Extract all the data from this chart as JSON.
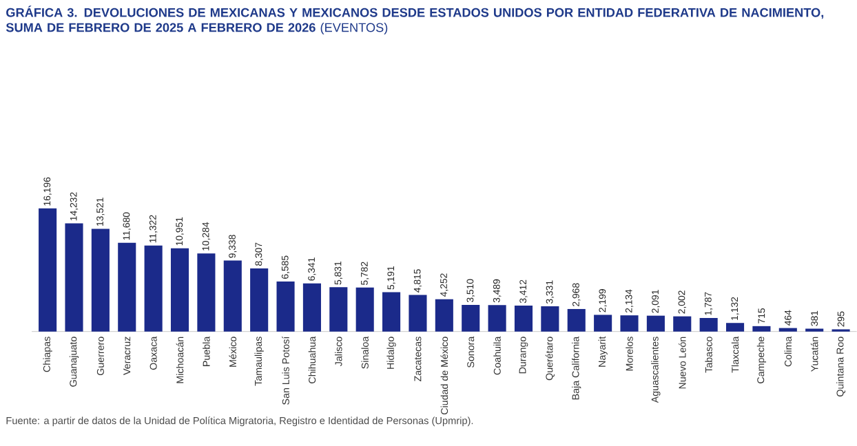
{
  "chart_data": {
    "type": "bar",
    "title": "**GRÁFICA 3. DEVOLUCIONES DE MEXICANAS Y MEXICANOS DESDE ESTADOS UNIDOS POR ENTIDAD FEDERATIVA DE NACIMIENTO, SUMA DE FEBRERO DE 2025 A FEBRERO DE 2026** (EVENTOS)",
    "categories": [
      "Chiapas",
      "Guanajuato",
      "Guerrero",
      "Veracruz",
      "Oaxaca",
      "Michoacán",
      "Puebla",
      "México",
      "Tamaulipas",
      "San Luis Potosí",
      "Chihuahua",
      "Jalisco",
      "Sinaloa",
      "Hidalgo",
      "Zacatecas",
      "Ciudad de México",
      "Sonora",
      "Coahuila",
      "Durango",
      "Querétaro",
      "Baja California",
      "Nayarit",
      "Morelos",
      "Aguascalientes",
      "Nuevo León",
      "Tabasco",
      "Tlaxcala",
      "Campeche",
      "Colima",
      "Yucatán",
      "Quintana Roo"
    ],
    "values": [
      16196,
      14232,
      13521,
      11680,
      11322,
      10951,
      10284,
      9338,
      8307,
      6585,
      6341,
      5831,
      5782,
      5191,
      4815,
      4252,
      3510,
      3489,
      3412,
      3331,
      2968,
      2199,
      2134,
      2091,
      2002,
      1787,
      1132,
      715,
      464,
      381,
      295
    ],
    "value_labels": [
      "16,196",
      "14,232",
      "13,521",
      "11,680",
      "11,322",
      "10,951",
      "10,284",
      "9,338",
      "8,307",
      "6,585",
      "6,341",
      "5,831",
      "5,782",
      "5,191",
      "4,815",
      "4,252",
      "3,510",
      "3,489",
      "3,412",
      "3,331",
      "2,968",
      "2,199",
      "2,134",
      "2,091",
      "2,002",
      "1,787",
      "1,132",
      "715",
      "464",
      "381",
      "295"
    ],
    "color": "#1b2a8a",
    "annotations": [
      "Fuente: a partir de datos de la Unidad de Política Migratoria, Registro e Identidad de Personas (Upmrip)."
    ]
  }
}
